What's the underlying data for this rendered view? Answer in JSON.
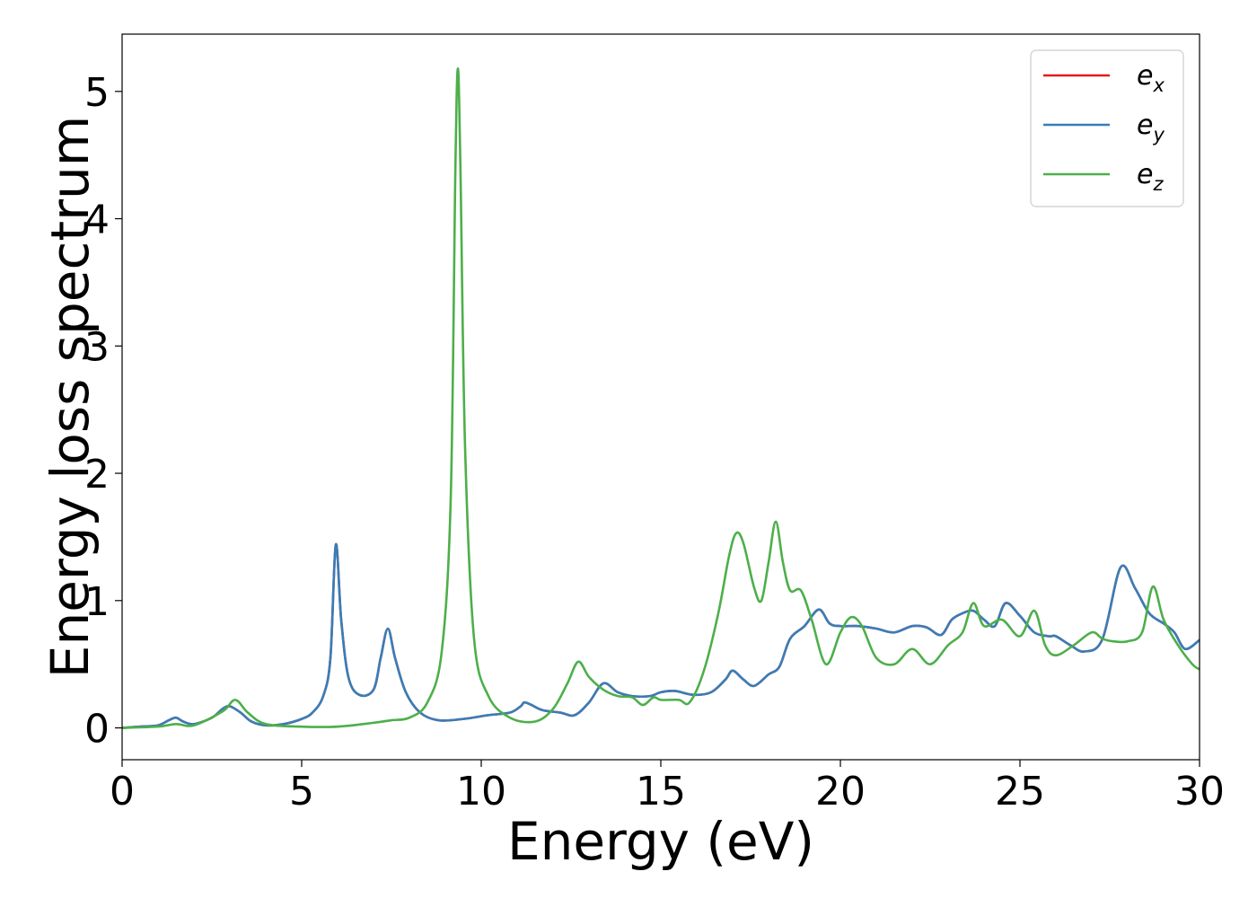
{
  "chart_data": {
    "type": "line",
    "xlabel": "Energy (eV)",
    "ylabel": "Energy loss spectrum",
    "xlim": [
      0,
      30
    ],
    "ylim": [
      -0.25,
      5.45
    ],
    "xticks": [
      0,
      5,
      10,
      15,
      20,
      25,
      30
    ],
    "xtick_labels": [
      "0",
      "5",
      "10",
      "15",
      "20",
      "25",
      "30"
    ],
    "yticks": [
      0,
      1,
      2,
      3,
      4,
      5
    ],
    "ytick_labels": [
      "0",
      "1",
      "2",
      "3",
      "4",
      "5"
    ],
    "grid": false,
    "legend_position": "top-right",
    "series": [
      {
        "name": "e_x",
        "legend_base": "e",
        "legend_sub": "x",
        "color": "#e41a1c",
        "x": [
          0,
          0.5,
          1,
          1.3,
          1.5,
          1.7,
          2,
          2.5,
          2.8,
          3,
          3.3,
          3.6,
          4,
          4.5,
          5,
          5.3,
          5.6,
          5.8,
          5.95,
          6.1,
          6.3,
          6.6,
          7,
          7.2,
          7.4,
          7.6,
          7.9,
          8.3,
          8.8,
          9.5,
          10.2,
          10.8,
          11.1,
          11.2,
          11.4,
          11.7,
          12.2,
          12.6,
          13.0,
          13.4,
          13.8,
          14.2,
          14.7,
          15.0,
          15.4,
          15.9,
          16.4,
          16.8,
          17.0,
          17.3,
          17.6,
          18.0,
          18.3,
          18.6,
          19.0,
          19.4,
          19.7,
          20.0,
          20.5,
          21.0,
          21.5,
          22.0,
          22.4,
          22.8,
          23.1,
          23.4,
          23.7,
          24.0,
          24.3,
          24.6,
          25.0,
          25.4,
          25.8,
          26.0,
          26.4,
          26.8,
          27.3,
          27.8,
          28.2,
          28.6,
          29.0,
          29.3,
          29.6,
          30.0
        ],
        "y": [
          0,
          0.01,
          0.02,
          0.06,
          0.08,
          0.05,
          0.03,
          0.08,
          0.15,
          0.17,
          0.12,
          0.05,
          0.02,
          0.03,
          0.07,
          0.12,
          0.25,
          0.55,
          1.44,
          0.85,
          0.4,
          0.26,
          0.3,
          0.55,
          0.78,
          0.55,
          0.28,
          0.12,
          0.06,
          0.07,
          0.1,
          0.12,
          0.17,
          0.2,
          0.18,
          0.14,
          0.12,
          0.1,
          0.2,
          0.35,
          0.28,
          0.25,
          0.25,
          0.28,
          0.29,
          0.26,
          0.28,
          0.38,
          0.45,
          0.38,
          0.33,
          0.42,
          0.48,
          0.7,
          0.8,
          0.93,
          0.82,
          0.8,
          0.8,
          0.78,
          0.75,
          0.8,
          0.79,
          0.73,
          0.85,
          0.9,
          0.92,
          0.85,
          0.8,
          0.98,
          0.88,
          0.75,
          0.72,
          0.72,
          0.65,
          0.6,
          0.7,
          1.26,
          1.1,
          0.9,
          0.82,
          0.75,
          0.62,
          0.69
        ]
      },
      {
        "name": "e_y",
        "legend_base": "e",
        "legend_sub": "y",
        "color": "#377eb8",
        "x": [
          0,
          0.5,
          1,
          1.3,
          1.5,
          1.7,
          2,
          2.5,
          2.8,
          3,
          3.3,
          3.6,
          4,
          4.5,
          5,
          5.3,
          5.6,
          5.8,
          5.95,
          6.1,
          6.3,
          6.6,
          7,
          7.2,
          7.4,
          7.6,
          7.9,
          8.3,
          8.8,
          9.5,
          10.2,
          10.8,
          11.1,
          11.2,
          11.4,
          11.7,
          12.2,
          12.6,
          13.0,
          13.4,
          13.8,
          14.2,
          14.7,
          15.0,
          15.4,
          15.9,
          16.4,
          16.8,
          17.0,
          17.3,
          17.6,
          18.0,
          18.3,
          18.6,
          19.0,
          19.4,
          19.7,
          20.0,
          20.5,
          21.0,
          21.5,
          22.0,
          22.4,
          22.8,
          23.1,
          23.4,
          23.7,
          24.0,
          24.3,
          24.6,
          25.0,
          25.4,
          25.8,
          26.0,
          26.4,
          26.8,
          27.3,
          27.8,
          28.2,
          28.6,
          29.0,
          29.3,
          29.6,
          30.0
        ],
        "y": [
          0,
          0.01,
          0.02,
          0.06,
          0.08,
          0.05,
          0.03,
          0.08,
          0.15,
          0.17,
          0.12,
          0.05,
          0.02,
          0.03,
          0.07,
          0.12,
          0.25,
          0.55,
          1.44,
          0.85,
          0.4,
          0.26,
          0.3,
          0.55,
          0.78,
          0.55,
          0.28,
          0.12,
          0.06,
          0.07,
          0.1,
          0.12,
          0.17,
          0.2,
          0.18,
          0.14,
          0.12,
          0.1,
          0.2,
          0.35,
          0.28,
          0.25,
          0.25,
          0.28,
          0.29,
          0.26,
          0.28,
          0.38,
          0.45,
          0.38,
          0.33,
          0.42,
          0.48,
          0.7,
          0.8,
          0.93,
          0.82,
          0.8,
          0.8,
          0.78,
          0.75,
          0.8,
          0.79,
          0.73,
          0.85,
          0.9,
          0.92,
          0.85,
          0.8,
          0.98,
          0.88,
          0.75,
          0.72,
          0.72,
          0.65,
          0.6,
          0.7,
          1.26,
          1.1,
          0.9,
          0.82,
          0.75,
          0.62,
          0.69
        ]
      },
      {
        "name": "e_z",
        "legend_base": "e",
        "legend_sub": "z",
        "color": "#4daf4a",
        "x": [
          0,
          1,
          1.5,
          2,
          2.8,
          3.15,
          3.5,
          4,
          5,
          6,
          7,
          7.5,
          8,
          8.5,
          8.9,
          9.15,
          9.28,
          9.35,
          9.42,
          9.55,
          9.8,
          10.2,
          10.8,
          11.5,
          12.0,
          12.4,
          12.7,
          13.0,
          13.4,
          13.8,
          14.2,
          14.5,
          14.8,
          15.0,
          15.5,
          15.8,
          16.2,
          16.6,
          16.9,
          17.1,
          17.3,
          17.6,
          17.8,
          18.0,
          18.2,
          18.4,
          18.6,
          18.9,
          19.2,
          19.6,
          20.0,
          20.3,
          20.6,
          21.0,
          21.5,
          22.0,
          22.5,
          23.0,
          23.4,
          23.7,
          24.0,
          24.5,
          25.0,
          25.4,
          25.7,
          26.0,
          26.5,
          27.0,
          27.3,
          27.6,
          28.0,
          28.4,
          28.7,
          29.0,
          29.4,
          29.8,
          30.0
        ],
        "y": [
          0,
          0.01,
          0.03,
          0.02,
          0.13,
          0.22,
          0.12,
          0.03,
          0.01,
          0.01,
          0.04,
          0.06,
          0.08,
          0.2,
          0.6,
          1.8,
          4.4,
          5.18,
          4.4,
          2.2,
          0.7,
          0.25,
          0.08,
          0.05,
          0.15,
          0.35,
          0.52,
          0.4,
          0.3,
          0.25,
          0.24,
          0.18,
          0.24,
          0.22,
          0.22,
          0.2,
          0.45,
          0.9,
          1.35,
          1.53,
          1.45,
          1.1,
          1.0,
          1.3,
          1.62,
          1.3,
          1.08,
          1.08,
          0.85,
          0.5,
          0.75,
          0.87,
          0.8,
          0.55,
          0.5,
          0.62,
          0.5,
          0.65,
          0.75,
          0.98,
          0.8,
          0.85,
          0.72,
          0.92,
          0.65,
          0.57,
          0.65,
          0.75,
          0.7,
          0.68,
          0.68,
          0.75,
          1.11,
          0.85,
          0.65,
          0.5,
          0.46
        ]
      }
    ]
  }
}
